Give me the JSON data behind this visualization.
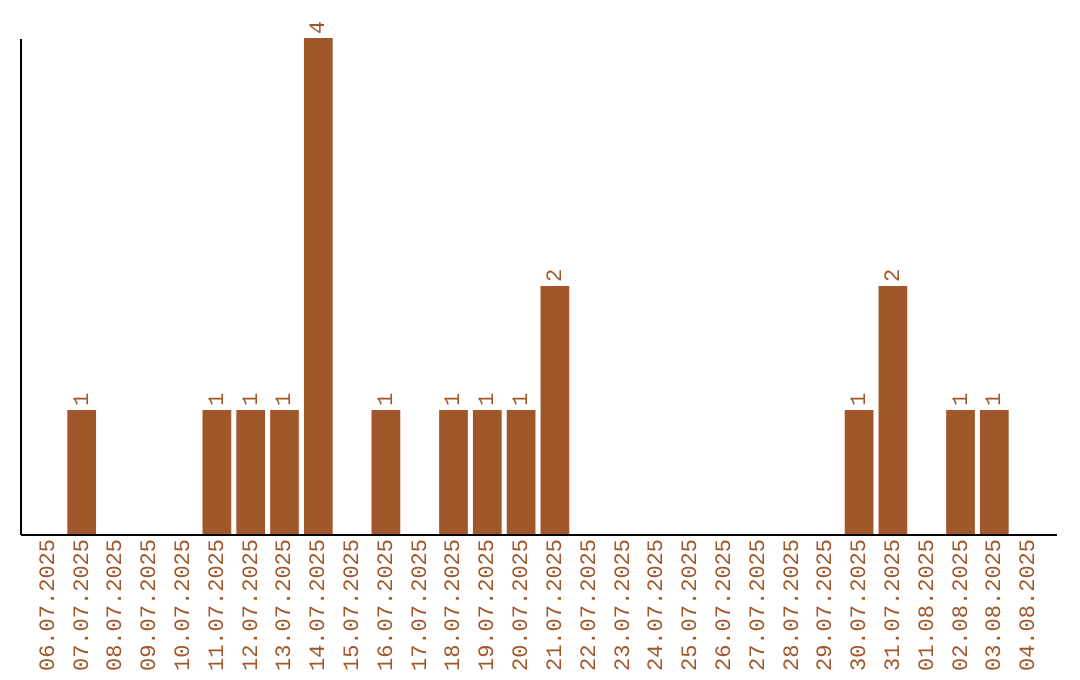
{
  "chart_data": {
    "type": "bar",
    "categories": [
      "06.07.2025",
      "07.07.2025",
      "08.07.2025",
      "09.07.2025",
      "10.07.2025",
      "11.07.2025",
      "12.07.2025",
      "13.07.2025",
      "14.07.2025",
      "15.07.2025",
      "16.07.2025",
      "17.07.2025",
      "18.07.2025",
      "19.07.2025",
      "20.07.2025",
      "21.07.2025",
      "22.07.2025",
      "23.07.2025",
      "24.07.2025",
      "25.07.2025",
      "26.07.2025",
      "27.07.2025",
      "28.07.2025",
      "29.07.2025",
      "30.07.2025",
      "31.07.2025",
      "01.08.2025",
      "02.08.2025",
      "03.08.2025",
      "04.08.2025"
    ],
    "values": [
      0,
      1,
      0,
      0,
      0,
      1,
      1,
      1,
      4,
      0,
      1,
      0,
      1,
      1,
      1,
      2,
      0,
      0,
      0,
      0,
      0,
      0,
      0,
      0,
      1,
      2,
      0,
      1,
      1,
      0
    ],
    "value_labels": [
      null,
      "1",
      null,
      null,
      null,
      "1",
      "1",
      "1",
      "4",
      null,
      "1",
      null,
      "1",
      "1",
      "1",
      "2",
      null,
      null,
      null,
      null,
      null,
      null,
      null,
      null,
      "1",
      "2",
      null,
      "1",
      "1",
      null
    ],
    "color": "#a0572a",
    "tick_labels": "x",
    "grid": false
  }
}
